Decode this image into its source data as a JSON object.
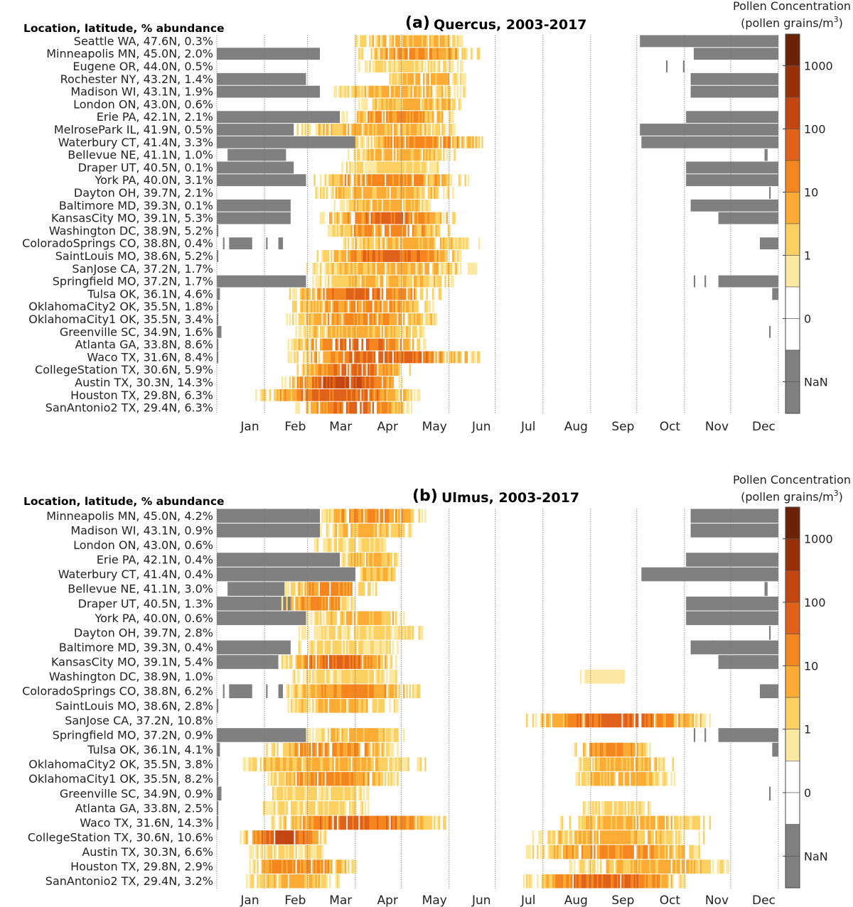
{
  "chart_data": [
    {
      "type": "heatmap",
      "panel": "(a)",
      "title": "Quercus, 2003-2017",
      "ylabel": "Location, latitude, % abundance",
      "x_units": "day of year",
      "xlim": [
        0,
        365
      ],
      "months": [
        "Jan",
        "Feb",
        "Mar",
        "Apr",
        "May",
        "Jun",
        "Jul",
        "Aug",
        "Sep",
        "Oct",
        "Nov",
        "Dec"
      ],
      "colorbar": {
        "title": "Pollen Concentration",
        "units": "(pollen grains/m",
        "units_sup": "3",
        "units_end": ")",
        "tick_labels": [
          "1000",
          "100",
          "10",
          "1",
          "0",
          "NaN"
        ]
      },
      "rows": [
        {
          "label": "Seattle WA, 47.6N,  0.3%",
          "nan": [
            [
              275,
              365
            ]
          ],
          "pollen": [
            [
              90,
              160,
              3
            ]
          ]
        },
        {
          "label": "Minneapolis MN, 45.0N,  2.0%",
          "nan": [
            [
              0,
              67
            ],
            [
              310,
              365
            ]
          ],
          "pollen": [
            [
              92,
              171,
              4
            ]
          ]
        },
        {
          "label": "Eugene OR, 44.0N,  0.5%",
          "nan": [
            [
              292,
              293
            ],
            [
              303,
              304
            ]
          ],
          "pollen": [
            [
              92,
              162,
              2
            ]
          ]
        },
        {
          "label": "Rochester NY, 43.2N,  1.4%",
          "nan": [
            [
              0,
              58
            ],
            [
              308,
              365
            ]
          ],
          "pollen": [
            [
              106,
              162,
              3
            ]
          ]
        },
        {
          "label": "Madison WI, 43.1N,  1.9%",
          "nan": [
            [
              0,
              67
            ],
            [
              308,
              365
            ]
          ],
          "pollen": [
            [
              76,
              162,
              3
            ]
          ]
        },
        {
          "label": "London ON, 43.0N,  0.6%",
          "nan": [],
          "pollen": [
            [
              92,
              162,
              3
            ]
          ]
        },
        {
          "label": "Erie PA, 42.1N,  2.1%",
          "nan": [
            [
              0,
              80
            ],
            [
              305,
              365
            ]
          ],
          "pollen": [
            [
              81,
              155,
              4
            ]
          ]
        },
        {
          "label": "MelrosePark IL, 41.9N,  0.5%",
          "nan": [
            [
              0,
              50
            ],
            [
              275,
              365
            ]
          ],
          "pollen": [
            [
              51,
              155,
              3
            ]
          ]
        },
        {
          "label": "Waterbury CT, 41.4N,  3.3%",
          "nan": [
            [
              0,
              90
            ],
            [
              276,
              365
            ]
          ],
          "pollen": [
            [
              90,
              176,
              4
            ]
          ]
        },
        {
          "label": "Bellevue NE, 41.1N,  1.0%",
          "nan": [
            [
              7,
              45
            ],
            [
              356,
              358
            ]
          ],
          "pollen": [
            [
              85,
              155,
              3
            ]
          ]
        },
        {
          "label": "Draper UT, 40.5N,  0.1%",
          "nan": [
            [
              0,
              50
            ],
            [
              305,
              365
            ]
          ],
          "pollen": [
            [
              81,
              146,
              2
            ]
          ]
        },
        {
          "label": "York PA, 40.0N,  3.1%",
          "nan": [
            [
              0,
              58
            ],
            [
              305,
              365
            ]
          ],
          "pollen": [
            [
              62,
              164,
              4
            ]
          ]
        },
        {
          "label": "Dayton OH, 39.7N,  2.1%",
          "nan": [
            [
              359,
              360
            ]
          ],
          "pollen": [
            [
              62,
              155,
              3
            ]
          ]
        },
        {
          "label": "Baltimore MD, 39.3N,  0.1%",
          "nan": [
            [
              0,
              48
            ],
            [
              308,
              323
            ],
            [
              322,
              365
            ]
          ],
          "pollen": [
            [
              76,
              141,
              3
            ]
          ]
        },
        {
          "label": "KansasCity MO, 39.1N,  5.3%",
          "nan": [
            [
              0,
              48
            ],
            [
              326,
              365
            ]
          ],
          "pollen": [
            [
              65,
              155,
              5
            ]
          ]
        },
        {
          "label": "Washington DC, 38.9N,  5.2%",
          "nan": [
            [
              0,
              1
            ]
          ],
          "pollen": [
            [
              72,
              152,
              4
            ]
          ]
        },
        {
          "label": "ColoradoSprings CO, 38.8N,  0.4%",
          "nan": [
            [
              4,
              5
            ],
            [
              8,
              23
            ],
            [
              32,
              33
            ],
            [
              40,
              43
            ],
            [
              353,
              365
            ]
          ],
          "pollen": [
            [
              79,
              171,
              3
            ]
          ]
        },
        {
          "label": "SaintLouis MO, 38.6N,  5.2%",
          "nan": [
            [
              0,
              1
            ]
          ],
          "pollen": [
            [
              65,
              159,
              5
            ]
          ]
        },
        {
          "label": "SanJose CA, 37.2N,  1.7%",
          "nan": [],
          "pollen": [
            [
              55,
              169,
              3
            ]
          ]
        },
        {
          "label": "Springfield MO, 37.2N,  1.7%",
          "nan": [
            [
              0,
              58
            ],
            [
              310,
              311
            ],
            [
              317,
              318
            ],
            [
              326,
              365
            ]
          ],
          "pollen": [
            [
              62,
              155,
              3
            ]
          ]
        },
        {
          "label": "Tulsa OK, 36.1N,  4.6%",
          "nan": [
            [
              0,
              2
            ],
            [
              361,
              365
            ]
          ],
          "pollen": [
            [
              44,
              146,
              5
            ]
          ]
        },
        {
          "label": "OklahomaCity2 OK, 35.5N,  1.8%",
          "nan": [
            [
              0,
              1
            ]
          ],
          "pollen": [
            [
              44,
              141,
              4
            ]
          ]
        },
        {
          "label": "OklahomaCity1 OK, 35.5N,  3.4%",
          "nan": [
            [
              0,
              1
            ]
          ],
          "pollen": [
            [
              44,
              146,
              4
            ]
          ]
        },
        {
          "label": "Greenville SC, 34.9N,  1.6%",
          "nan": [
            [
              0,
              3
            ],
            [
              359,
              360
            ]
          ],
          "pollen": [
            [
              51,
              136,
              3
            ]
          ]
        },
        {
          "label": "Atlanta GA, 33.8N,  8.6%",
          "nan": [
            [
              0,
              1
            ]
          ],
          "pollen": [
            [
              46,
              136,
              5
            ]
          ]
        },
        {
          "label": "Waco TX, 31.6N,  8.4%",
          "nan": [
            [
              0,
              1
            ]
          ],
          "pollen": [
            [
              46,
              171,
              5
            ]
          ]
        },
        {
          "label": "CollegeStation TX, 30.6N,  5.9%",
          "nan": [],
          "pollen": [
            [
              51,
              127,
              5
            ]
          ]
        },
        {
          "label": "Austin TX, 30.3N, 14.3%",
          "nan": [],
          "pollen": [
            [
              42,
              122,
              6
            ]
          ]
        },
        {
          "label": "Houston TX, 29.8N,  6.3%",
          "nan": [],
          "pollen": [
            [
              25,
              132,
              5
            ]
          ]
        },
        {
          "label": "SanAntonio2 TX, 29.4N,  6.3%",
          "nan": [],
          "pollen": [
            [
              51,
              127,
              5
            ]
          ]
        }
      ]
    },
    {
      "type": "heatmap",
      "panel": "(b)",
      "title": "Ulmus, 2003-2017",
      "ylabel": "Location, latitude, % abundance",
      "x_units": "day of year",
      "xlim": [
        0,
        365
      ],
      "months": [
        "Jan",
        "Feb",
        "Mar",
        "Apr",
        "May",
        "Jun",
        "Jul",
        "Aug",
        "Sep",
        "Oct",
        "Nov",
        "Dec"
      ],
      "colorbar": {
        "title": "Pollen Concentration",
        "units": "(pollen grains/m",
        "units_sup": "3",
        "units_end": ")",
        "tick_labels": [
          "1000",
          "100",
          "10",
          "1",
          "0",
          "NaN"
        ]
      },
      "rows": [
        {
          "label": "Minneapolis MN, 45.0N,  4.2%",
          "nan": [
            [
              0,
              67
            ],
            [
              308,
              365
            ]
          ],
          "pollen": [
            [
              67,
              136,
              4
            ]
          ]
        },
        {
          "label": "Madison WI, 43.1N,  0.9%",
          "nan": [
            [
              0,
              67
            ],
            [
              308,
              365
            ]
          ],
          "pollen": [
            [
              67,
              127,
              3
            ]
          ]
        },
        {
          "label": "London ON, 43.0N,  0.6%",
          "nan": [],
          "pollen": [
            [
              62,
              113,
              2
            ]
          ]
        },
        {
          "label": "Erie PA, 42.1N,  0.4%",
          "nan": [
            [
              0,
              80
            ],
            [
              305,
              365
            ]
          ],
          "pollen": [
            [
              81,
              118,
              3
            ]
          ]
        },
        {
          "label": "Waterbury CT, 41.4N,  0.4%",
          "nan": [
            [
              0,
              90
            ],
            [
              276,
              365
            ]
          ],
          "pollen": [
            [
              90,
              118,
              3
            ]
          ]
        },
        {
          "label": "Bellevue NE, 41.1N,  3.0%",
          "nan": [
            [
              7,
              45
            ],
            [
              356,
              358
            ]
          ],
          "pollen": [
            [
              44,
              104,
              4
            ]
          ]
        },
        {
          "label": "Draper UT, 40.5N,  1.3%",
          "nan": [
            [
              0,
              50
            ],
            [
              305,
              365
            ]
          ],
          "pollen": [
            [
              42,
              90,
              4
            ]
          ]
        },
        {
          "label": "York PA, 40.0N,  0.6%",
          "nan": [
            [
              0,
              58
            ],
            [
              305,
              365
            ]
          ],
          "pollen": [
            [
              58,
              122,
              3
            ]
          ]
        },
        {
          "label": "Dayton OH, 39.7N,  2.8%",
          "nan": [
            [
              359,
              360
            ]
          ],
          "pollen": [
            [
              53,
              136,
              2
            ]
          ]
        },
        {
          "label": "Baltimore MD, 39.3N,  0.4%",
          "nan": [
            [
              0,
              48
            ],
            [
              308,
              323
            ],
            [
              322,
              365
            ]
          ],
          "pollen": [
            [
              51,
              118,
              2
            ]
          ]
        },
        {
          "label": "KansasCity MO, 39.1N,  5.4%",
          "nan": [
            [
              0,
              40
            ],
            [
              326,
              365
            ]
          ],
          "pollen": [
            [
              42,
              118,
              5
            ]
          ]
        },
        {
          "label": "Washington DC, 38.9N,  1.0%",
          "nan": [],
          "pollen": [
            [
              49,
              118,
              2
            ],
            [
              236,
              266,
              1
            ]
          ]
        },
        {
          "label": "ColoradoSprings CO, 38.8N,  6.2%",
          "nan": [
            [
              4,
              5
            ],
            [
              8,
              23
            ],
            [
              32,
              33
            ],
            [
              40,
              43
            ],
            [
              353,
              365
            ]
          ],
          "pollen": [
            [
              44,
              132,
              4
            ]
          ]
        },
        {
          "label": "SaintLouis MO, 38.6N,  2.8%",
          "nan": [
            [
              0,
              1
            ]
          ],
          "pollen": [
            [
              46,
              118,
              3
            ]
          ]
        },
        {
          "label": "SanJose CA, 37.2N, 10.8%",
          "nan": [],
          "pollen": [
            [
              199,
              321,
              5
            ]
          ]
        },
        {
          "label": "Springfield MO, 37.2N,  0.9%",
          "nan": [
            [
              0,
              58
            ],
            [
              310,
              311
            ],
            [
              317,
              318
            ],
            [
              326,
              365
            ]
          ],
          "pollen": [
            [
              58,
              122,
              3
            ]
          ]
        },
        {
          "label": "Tulsa OK, 36.1N,  4.1%",
          "nan": [
            [
              0,
              2
            ],
            [
              361,
              365
            ]
          ],
          "pollen": [
            [
              32,
              118,
              4
            ],
            [
              231,
              282,
              4
            ]
          ]
        },
        {
          "label": "OklahomaCity2 OK, 35.5N,  3.8%",
          "nan": [
            [
              0,
              1
            ]
          ],
          "pollen": [
            [
              16,
              136,
              3
            ],
            [
              233,
              298,
              3
            ]
          ]
        },
        {
          "label": "OklahomaCity1 OK, 35.5N,  8.2%",
          "nan": [
            [
              0,
              1
            ]
          ],
          "pollen": [
            [
              32,
              118,
              4
            ],
            [
              229,
              298,
              3
            ]
          ]
        },
        {
          "label": "Greenville SC, 34.9N,  0.9%",
          "nan": [
            [
              0,
              3
            ],
            [
              359,
              360
            ]
          ],
          "pollen": [
            [
              30,
              99,
              2
            ]
          ]
        },
        {
          "label": "Atlanta GA, 33.8N,  2.5%",
          "nan": [
            [
              0,
              1
            ]
          ],
          "pollen": [
            [
              30,
              99,
              2
            ],
            [
              236,
              282,
              2
            ]
          ]
        },
        {
          "label": "Waco TX, 31.6N, 14.3%",
          "nan": [
            [
              0,
              1
            ]
          ],
          "pollen": [
            [
              35,
              150,
              5
            ],
            [
              222,
              321,
              3
            ]
          ]
        },
        {
          "label": "CollegeStation TX, 30.6N, 10.6%",
          "nan": [],
          "pollen": [
            [
              14,
              72,
              6
            ],
            [
              201,
              317,
              3
            ]
          ]
        },
        {
          "label": "Austin TX, 30.3N,  6.6%",
          "nan": [],
          "pollen": [
            [
              21,
              72,
              2
            ],
            [
              201,
              317,
              4
            ]
          ]
        },
        {
          "label": "Houston TX, 29.8N,  2.9%",
          "nan": [],
          "pollen": [
            [
              18,
              92,
              4
            ],
            [
              229,
              335,
              3
            ]
          ]
        },
        {
          "label": "SanAntonio2 TX, 29.4N,  3.2%",
          "nan": [],
          "pollen": [
            [
              18,
              81,
              3
            ],
            [
              199,
              305,
              5
            ]
          ]
        }
      ]
    }
  ],
  "colors": {
    "nan": "#808080",
    "zero": "#ffffff",
    "levels": [
      "#fde8a2",
      "#fdd062",
      "#fcac35",
      "#f5861f",
      "#e0621a",
      "#c34510",
      "#9a3009",
      "#6b2207"
    ]
  }
}
